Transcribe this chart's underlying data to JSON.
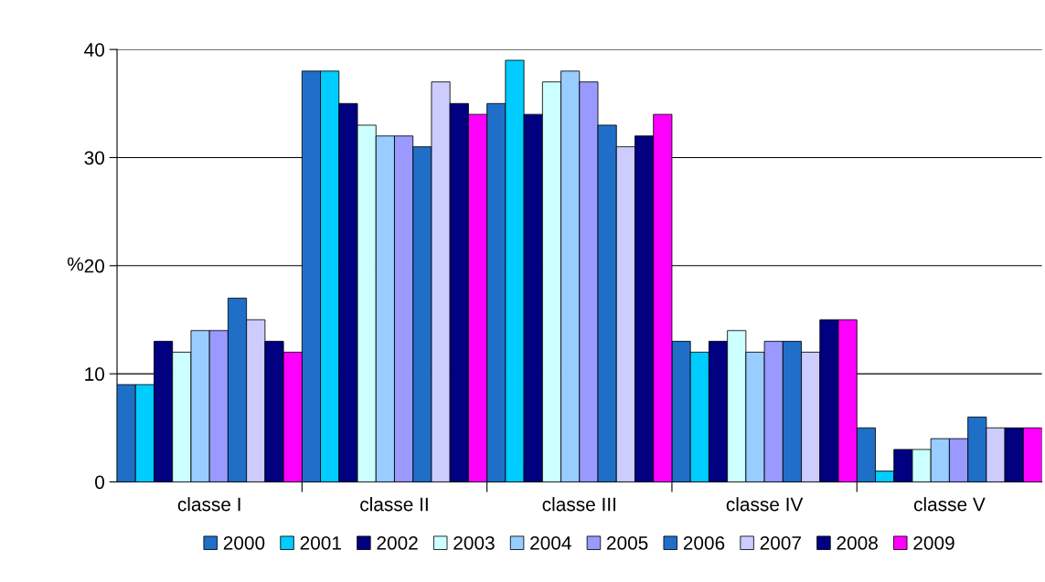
{
  "chart_data": {
    "type": "bar",
    "ylabel": "%",
    "categories": [
      "classe I",
      "classe II",
      "classe III",
      "classe IV",
      "classe V"
    ],
    "series": [
      {
        "name": "2000",
        "color": "#1f6fc8",
        "values": [
          9,
          38,
          35,
          13,
          5
        ]
      },
      {
        "name": "2001",
        "color": "#00ccff",
        "values": [
          9,
          38,
          39,
          12,
          1
        ]
      },
      {
        "name": "2002",
        "color": "#000080",
        "values": [
          13,
          35,
          34,
          13,
          3
        ]
      },
      {
        "name": "2003",
        "color": "#ccffff",
        "values": [
          12,
          33,
          37,
          14,
          3
        ]
      },
      {
        "name": "2004",
        "color": "#99ccff",
        "values": [
          14,
          32,
          38,
          12,
          4
        ]
      },
      {
        "name": "2005",
        "color": "#9999ff",
        "values": [
          14,
          32,
          37,
          13,
          4
        ]
      },
      {
        "name": "2006",
        "color": "#1f6fc8",
        "values": [
          17,
          31,
          33,
          13,
          6
        ]
      },
      {
        "name": "2007",
        "color": "#ccccff",
        "values": [
          15,
          37,
          31,
          12,
          5
        ]
      },
      {
        "name": "2008",
        "color": "#000080",
        "values": [
          13,
          35,
          32,
          15,
          5
        ]
      },
      {
        "name": "2009",
        "color": "#ff00ff",
        "values": [
          12,
          34,
          34,
          15,
          5
        ]
      }
    ],
    "ylim": [
      0,
      40
    ],
    "yticks": [
      0,
      10,
      20,
      30,
      40
    ],
    "grid": "y",
    "legend": "bottom"
  }
}
